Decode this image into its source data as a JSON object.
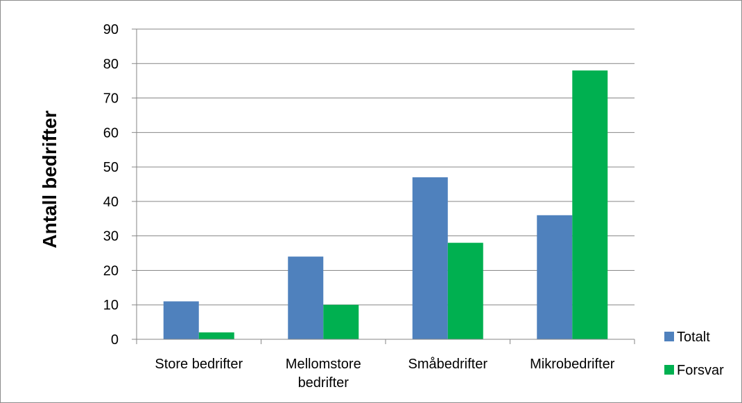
{
  "chart_data": {
    "type": "bar",
    "title": "",
    "xlabel": "",
    "ylabel": "Antall bedrifter",
    "categories": [
      [
        "Store bedrifter"
      ],
      [
        "Mellomstore",
        "bedrifter"
      ],
      [
        "Småbedrifter"
      ],
      [
        "Mikrobedrifter"
      ]
    ],
    "series": [
      {
        "name": "Totalt",
        "values": [
          11,
          24,
          47,
          36
        ],
        "color": "#4f81bd"
      },
      {
        "name": "Forsvar",
        "values": [
          2,
          10,
          28,
          78
        ],
        "color": "#00b050"
      }
    ],
    "ylim": [
      0,
      90
    ],
    "yticks": [
      0,
      10,
      20,
      30,
      40,
      50,
      60,
      70,
      80,
      90
    ],
    "grid": true,
    "legend_position": "right"
  }
}
